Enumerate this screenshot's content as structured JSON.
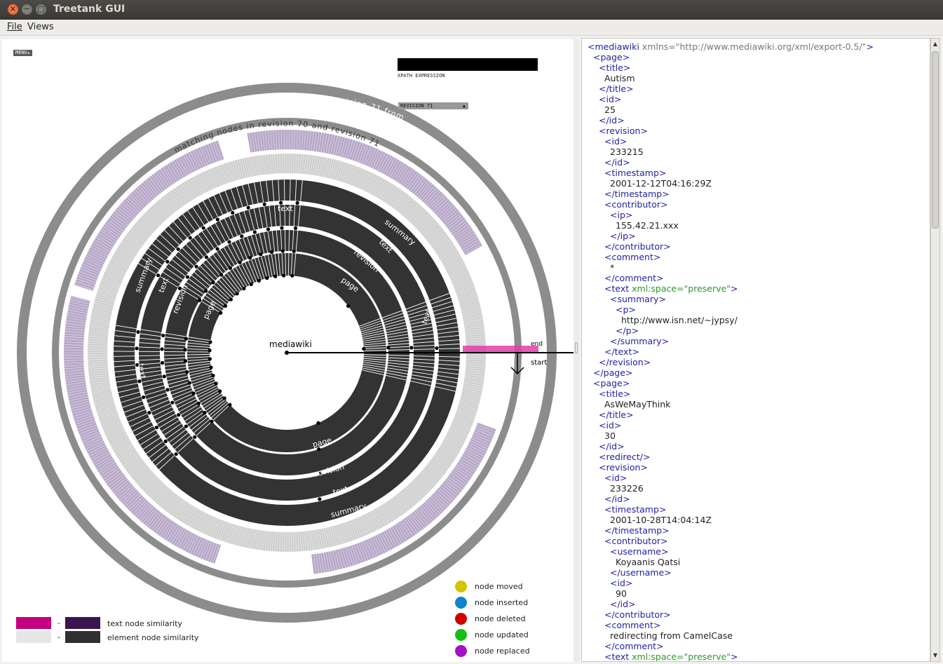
{
  "window": {
    "title": "Treetank GUI"
  },
  "menubar": {
    "file": "File",
    "views": "Views"
  },
  "viz": {
    "menu_button": "MENU▴",
    "xpath_label": "XPATH EXPRESSION",
    "revision_select": "REVISION  71",
    "outer_ring_label": "changed nodes in revision 71 from revision 70",
    "inner_ring_label": "matching nodes in revision 70 and revision 71",
    "center_label": "mediawiki",
    "end_label": "end",
    "start_label": "start",
    "ring_labels_top": [
      "text",
      "summary",
      "text",
      "revision",
      "page"
    ],
    "ring_labels_left": [
      "summary",
      "text",
      "revision",
      "page"
    ],
    "ring_labels_bottom": [
      "page",
      "revision",
      "text",
      "summary"
    ],
    "ring_label_misc": [
      "text",
      "text"
    ],
    "legend": [
      {
        "label": "node moved",
        "color": "#d4c300"
      },
      {
        "label": "node inserted",
        "color": "#0c84d0"
      },
      {
        "label": "node deleted",
        "color": "#d40000"
      },
      {
        "label": "node updated",
        "color": "#12c012"
      },
      {
        "label": "node replaced",
        "color": "#a310c8"
      }
    ],
    "similarity": [
      {
        "from": "#c4007e",
        "to": "#3a1550",
        "label": "text node similarity"
      },
      {
        "from": "#e6e6e6",
        "to": "#303030",
        "label": "element node similarity"
      }
    ],
    "dash": "-"
  },
  "xml": {
    "lines": [
      [
        0,
        "<mediawiki",
        " xmlns=\"http://www.mediawiki.org/xml/export-0.5/\"",
        ">"
      ],
      [
        1,
        "<page>"
      ],
      [
        2,
        "<title>"
      ],
      [
        3,
        "Autism",
        "text"
      ],
      [
        2,
        "</title>"
      ],
      [
        2,
        "<id>"
      ],
      [
        3,
        "25",
        "text"
      ],
      [
        2,
        "</id>"
      ],
      [
        2,
        "<revision>"
      ],
      [
        3,
        "<id>"
      ],
      [
        4,
        "233215",
        "text"
      ],
      [
        3,
        "</id>"
      ],
      [
        3,
        "<timestamp>"
      ],
      [
        4,
        "2001-12-12T04:16:29Z",
        "text"
      ],
      [
        3,
        "</timestamp>"
      ],
      [
        3,
        "<contributor>"
      ],
      [
        4,
        "<ip>"
      ],
      [
        5,
        "155.42.21.xxx",
        "text"
      ],
      [
        4,
        "</ip>"
      ],
      [
        3,
        "</contributor>"
      ],
      [
        3,
        "<comment>"
      ],
      [
        4,
        "*",
        "text"
      ],
      [
        3,
        "</comment>"
      ],
      [
        3,
        "<text",
        " xml:space=\"preserve\"",
        ">",
        "green"
      ],
      [
        4,
        "<summary>"
      ],
      [
        5,
        "<p>"
      ],
      [
        6,
        "http://www.isn.net/~jypsy/",
        "text"
      ],
      [
        5,
        "</p>"
      ],
      [
        4,
        "</summary>"
      ],
      [
        3,
        "</text>"
      ],
      [
        2,
        "</revision>"
      ],
      [
        1,
        "</page>"
      ],
      [
        1,
        "<page>"
      ],
      [
        2,
        "<title>"
      ],
      [
        3,
        "AsWeMayThink",
        "text"
      ],
      [
        2,
        "</title>"
      ],
      [
        2,
        "<id>"
      ],
      [
        3,
        "30",
        "text"
      ],
      [
        2,
        "</id>"
      ],
      [
        2,
        "<redirect/>"
      ],
      [
        2,
        "<revision>"
      ],
      [
        3,
        "<id>"
      ],
      [
        4,
        "233226",
        "text"
      ],
      [
        3,
        "</id>"
      ],
      [
        3,
        "<timestamp>"
      ],
      [
        4,
        "2001-10-28T14:04:14Z",
        "text"
      ],
      [
        3,
        "</timestamp>"
      ],
      [
        3,
        "<contributor>"
      ],
      [
        4,
        "<username>"
      ],
      [
        5,
        "Koyaanis Qatsi",
        "text"
      ],
      [
        4,
        "</username>"
      ],
      [
        4,
        "<id>"
      ],
      [
        5,
        "90",
        "text"
      ],
      [
        4,
        "</id>"
      ],
      [
        3,
        "</contributor>"
      ],
      [
        3,
        "<comment>"
      ],
      [
        4,
        "redirecting from CamelCase",
        "text"
      ],
      [
        3,
        "</comment>"
      ],
      [
        3,
        "<text",
        " xml:space=\"preserve\"",
        ">",
        "green"
      ]
    ]
  },
  "colors": {
    "ring_dark": "#333333",
    "ring_gray": "#8c8c8c",
    "purple_band": "#b8a8c8",
    "highlight": "#e040a8"
  }
}
